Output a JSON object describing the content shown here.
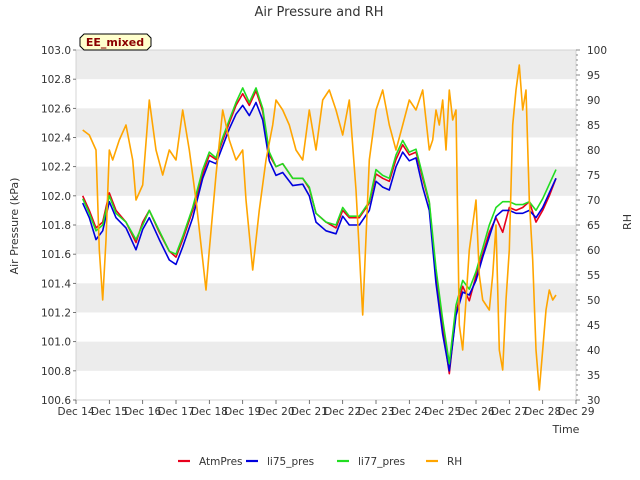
{
  "chart_data": {
    "type": "line",
    "title": "Air Pressure and RH",
    "xlabel": "Time",
    "ylabel": "Air Pressure (kPa)",
    "y2label": "RH",
    "station_label": "EE_mixed",
    "x_ticks": [
      "Dec 14",
      "Dec 15",
      "Dec 16",
      "Dec 17",
      "Dec 18",
      "Dec 19",
      "Dec 20",
      "Dec 21",
      "Dec 22",
      "Dec 23",
      "Dec 24",
      "Dec 25",
      "Dec 26",
      "Dec 27",
      "Dec 28",
      "Dec 29"
    ],
    "xlim": [
      14,
      29
    ],
    "ylim": [
      100.6,
      103.0
    ],
    "y_ticks": [
      "100.6",
      "100.8",
      "101.0",
      "101.2",
      "101.4",
      "101.6",
      "101.8",
      "102.0",
      "102.2",
      "102.4",
      "102.6",
      "102.8",
      "103.0"
    ],
    "y2lim": [
      30,
      100
    ],
    "y2_ticks": [
      "30",
      "35",
      "40",
      "45",
      "50",
      "55",
      "60",
      "65",
      "70",
      "75",
      "80",
      "85",
      "90",
      "95",
      "100"
    ],
    "grid": "horizontal bands",
    "legend_position": "bottom",
    "series": [
      {
        "name": "AtmPres",
        "axis": "left",
        "color": "#e8001c",
        "x": [
          14.2,
          14.4,
          14.6,
          14.8,
          15.0,
          15.2,
          15.5,
          15.8,
          16.0,
          16.2,
          16.5,
          16.8,
          17.0,
          17.2,
          17.5,
          17.8,
          18.0,
          18.2,
          18.4,
          18.6,
          18.8,
          19.0,
          19.2,
          19.4,
          19.6,
          19.8,
          20.0,
          20.2,
          20.5,
          20.8,
          21.0,
          21.2,
          21.5,
          21.8,
          22.0,
          22.2,
          22.5,
          22.8,
          23.0,
          23.2,
          23.4,
          23.6,
          23.8,
          24.0,
          24.2,
          24.4,
          24.6,
          24.8,
          25.0,
          25.2,
          25.4,
          25.6,
          25.8,
          26.0,
          26.2,
          26.4,
          26.6,
          26.8,
          27.0,
          27.2,
          27.4,
          27.6,
          27.8,
          28.0,
          28.2,
          28.4
        ],
        "values": [
          102.0,
          101.9,
          101.78,
          101.82,
          102.02,
          101.9,
          101.82,
          101.68,
          101.82,
          101.9,
          101.75,
          101.62,
          101.58,
          101.7,
          101.9,
          102.15,
          102.28,
          102.25,
          102.38,
          102.5,
          102.62,
          102.7,
          102.62,
          102.72,
          102.58,
          102.28,
          102.2,
          102.22,
          102.12,
          102.12,
          102.05,
          101.88,
          101.82,
          101.78,
          101.9,
          101.85,
          101.85,
          101.95,
          102.15,
          102.12,
          102.1,
          102.25,
          102.35,
          102.28,
          102.3,
          102.12,
          101.95,
          101.45,
          101.1,
          100.78,
          101.2,
          101.38,
          101.28,
          101.45,
          101.6,
          101.75,
          101.85,
          101.75,
          101.92,
          101.9,
          101.92,
          101.96,
          101.82,
          101.9,
          102.0,
          102.12
        ]
      },
      {
        "name": "li75_pres",
        "axis": "left",
        "color": "#0000dd",
        "x": [
          14.2,
          14.4,
          14.6,
          14.8,
          15.0,
          15.2,
          15.5,
          15.8,
          16.0,
          16.2,
          16.5,
          16.8,
          17.0,
          17.2,
          17.5,
          17.8,
          18.0,
          18.2,
          18.4,
          18.6,
          18.8,
          19.0,
          19.2,
          19.4,
          19.6,
          19.8,
          20.0,
          20.2,
          20.5,
          20.8,
          21.0,
          21.2,
          21.5,
          21.8,
          22.0,
          22.2,
          22.5,
          22.8,
          23.0,
          23.2,
          23.4,
          23.6,
          23.8,
          24.0,
          24.2,
          24.4,
          24.6,
          24.8,
          25.0,
          25.2,
          25.4,
          25.6,
          25.8,
          26.0,
          26.2,
          26.4,
          26.6,
          26.8,
          27.0,
          27.2,
          27.4,
          27.6,
          27.8,
          28.0,
          28.2,
          28.4
        ],
        "values": [
          101.95,
          101.85,
          101.7,
          101.76,
          101.96,
          101.85,
          101.78,
          101.63,
          101.77,
          101.85,
          101.7,
          101.56,
          101.53,
          101.65,
          101.85,
          102.12,
          102.24,
          102.22,
          102.34,
          102.46,
          102.56,
          102.62,
          102.55,
          102.64,
          102.52,
          102.24,
          102.14,
          102.16,
          102.07,
          102.08,
          102.0,
          101.82,
          101.76,
          101.74,
          101.86,
          101.8,
          101.8,
          101.9,
          102.1,
          102.06,
          102.04,
          102.2,
          102.3,
          102.24,
          102.26,
          102.06,
          101.9,
          101.4,
          101.05,
          100.8,
          101.18,
          101.34,
          101.32,
          101.42,
          101.58,
          101.72,
          101.86,
          101.9,
          101.9,
          101.88,
          101.88,
          101.9,
          101.85,
          101.92,
          102.02,
          102.12
        ]
      },
      {
        "name": "li77_pres",
        "axis": "left",
        "color": "#22dd22",
        "x": [
          14.2,
          14.4,
          14.6,
          14.8,
          15.0,
          15.2,
          15.5,
          15.8,
          16.0,
          16.2,
          16.5,
          16.8,
          17.0,
          17.2,
          17.5,
          17.8,
          18.0,
          18.2,
          18.4,
          18.6,
          18.8,
          19.0,
          19.2,
          19.4,
          19.6,
          19.8,
          20.0,
          20.2,
          20.5,
          20.8,
          21.0,
          21.2,
          21.5,
          21.8,
          22.0,
          22.2,
          22.5,
          22.8,
          23.0,
          23.2,
          23.4,
          23.6,
          23.8,
          24.0,
          24.2,
          24.4,
          24.6,
          24.8,
          25.0,
          25.2,
          25.4,
          25.6,
          25.8,
          26.0,
          26.2,
          26.4,
          26.6,
          26.8,
          27.0,
          27.2,
          27.4,
          27.6,
          27.8,
          28.0,
          28.2,
          28.4
        ],
        "values": [
          101.98,
          101.88,
          101.76,
          101.8,
          102.0,
          101.88,
          101.82,
          101.7,
          101.8,
          101.9,
          101.76,
          101.62,
          101.6,
          101.72,
          101.92,
          102.18,
          102.3,
          102.26,
          102.4,
          102.52,
          102.64,
          102.74,
          102.64,
          102.74,
          102.6,
          102.3,
          102.2,
          102.22,
          102.12,
          102.12,
          102.06,
          101.88,
          101.82,
          101.8,
          101.92,
          101.86,
          101.86,
          101.96,
          102.18,
          102.14,
          102.12,
          102.28,
          102.38,
          102.3,
          102.32,
          102.14,
          101.96,
          101.5,
          101.15,
          100.85,
          101.25,
          101.42,
          101.36,
          101.48,
          101.64,
          101.8,
          101.92,
          101.96,
          101.96,
          101.94,
          101.94,
          101.96,
          101.9,
          101.98,
          102.08,
          102.18
        ]
      },
      {
        "name": "RH",
        "axis": "right",
        "color": "#ffa500",
        "x": [
          14.2,
          14.4,
          14.6,
          14.7,
          14.8,
          14.9,
          15.0,
          15.1,
          15.3,
          15.5,
          15.7,
          15.8,
          16.0,
          16.2,
          16.4,
          16.6,
          16.8,
          17.0,
          17.2,
          17.4,
          17.6,
          17.8,
          17.9,
          18.0,
          18.2,
          18.4,
          18.6,
          18.8,
          19.0,
          19.1,
          19.3,
          19.5,
          19.7,
          19.9,
          20.0,
          20.2,
          20.4,
          20.6,
          20.8,
          21.0,
          21.2,
          21.4,
          21.6,
          21.8,
          22.0,
          22.2,
          22.4,
          22.6,
          22.8,
          23.0,
          23.2,
          23.4,
          23.6,
          23.8,
          24.0,
          24.2,
          24.4,
          24.5,
          24.6,
          24.7,
          24.8,
          24.9,
          25.0,
          25.1,
          25.2,
          25.3,
          25.4,
          25.5,
          25.6,
          25.8,
          26.0,
          26.1,
          26.2,
          26.4,
          26.5,
          26.6,
          26.7,
          26.8,
          26.9,
          27.0,
          27.1,
          27.2,
          27.3,
          27.4,
          27.5,
          27.6,
          27.7,
          27.8,
          27.9,
          28.0,
          28.1,
          28.2,
          28.3,
          28.4
        ],
        "values": [
          84,
          83,
          80,
          60,
          50,
          62,
          80,
          78,
          82,
          85,
          78,
          70,
          73,
          90,
          80,
          75,
          80,
          78,
          88,
          80,
          70,
          58,
          52,
          60,
          75,
          88,
          82,
          78,
          80,
          70,
          56,
          68,
          78,
          85,
          90,
          88,
          85,
          80,
          78,
          88,
          80,
          90,
          92,
          88,
          83,
          90,
          72,
          47,
          78,
          88,
          92,
          85,
          80,
          85,
          90,
          88,
          92,
          86,
          80,
          82,
          88,
          85,
          90,
          80,
          92,
          86,
          88,
          45,
          40,
          60,
          70,
          55,
          50,
          48,
          55,
          65,
          40,
          36,
          50,
          60,
          85,
          92,
          97,
          88,
          92,
          70,
          58,
          40,
          32,
          40,
          48,
          52,
          50,
          51
        ]
      }
    ]
  }
}
